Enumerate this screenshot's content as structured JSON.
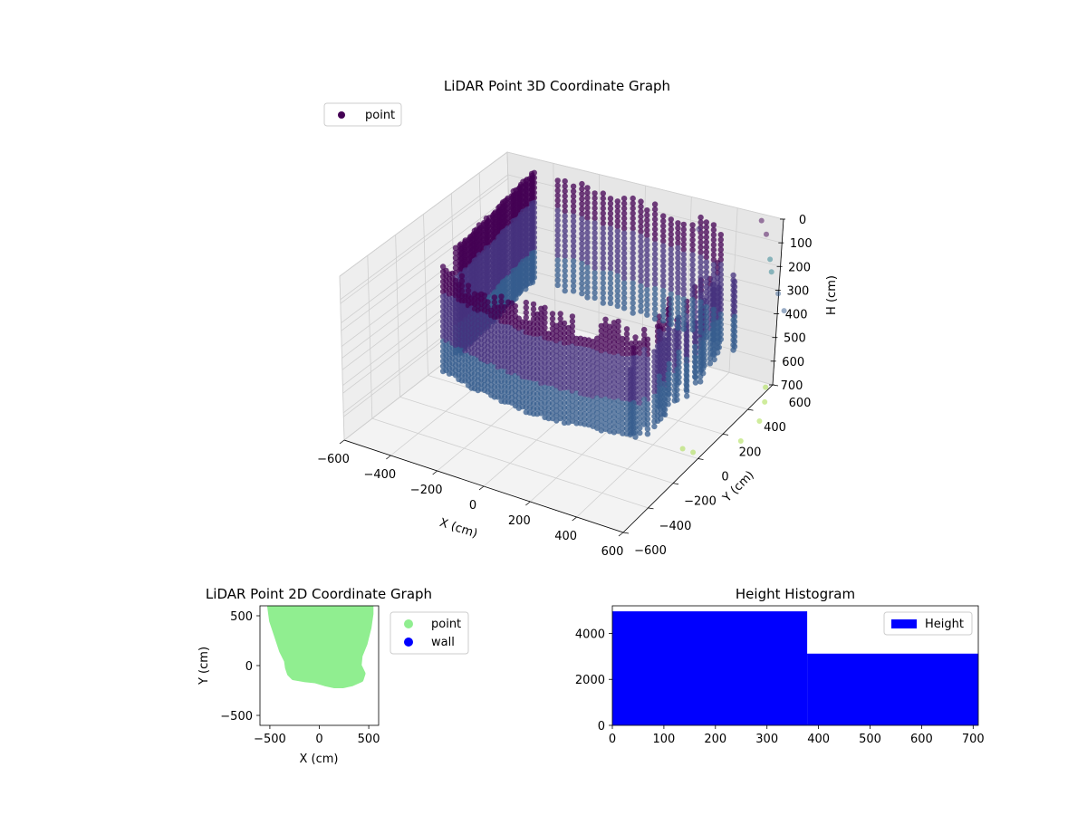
{
  "chart_data": [
    {
      "type": "scatter",
      "title": "LiDAR Point 3D Coordinate Graph",
      "xlabel": "X (cm)",
      "ylabel": "Y (cm)",
      "zlabel": "H (cm)",
      "xlim": [
        -600,
        600
      ],
      "ylim": [
        -600,
        600
      ],
      "zlim": [
        0,
        700
      ],
      "z_inverted": true,
      "x_ticks": [
        "−600",
        "−400",
        "−200",
        "0",
        "200",
        "400",
        "600"
      ],
      "y_ticks": [
        "−600",
        "−400",
        "−200",
        "0",
        "200",
        "400",
        "600"
      ],
      "z_ticks": [
        "0",
        "100",
        "200",
        "300",
        "400",
        "500",
        "600",
        "700"
      ],
      "legend": {
        "entries": [
          "point"
        ],
        "placement": "top-left"
      },
      "colormap": "viridis",
      "grid": true,
      "series": [
        {
          "name": "point",
          "description": "dense point cloud of vertical scan columns forming a curved wall structure",
          "x_range": [
            -420,
            470
          ],
          "y_range": [
            -280,
            560
          ],
          "h_range": [
            0,
            700
          ]
        }
      ]
    },
    {
      "type": "scatter",
      "title": "LiDAR Point 2D Coordinate Graph",
      "xlabel": "X (cm)",
      "ylabel": "Y (cm)",
      "xlim": [
        -600,
        600
      ],
      "ylim": [
        -600,
        600
      ],
      "x_ticks": [
        "−500",
        "0",
        "500"
      ],
      "y_ticks": [
        "−500",
        "0",
        "500"
      ],
      "legend": {
        "entries": [
          "point",
          "wall"
        ],
        "placement": "right-outside"
      },
      "series": [
        {
          "name": "point",
          "color": "#90ee90",
          "outline": [
            [
              -500,
              600
            ],
            [
              -480,
              450
            ],
            [
              -430,
              300
            ],
            [
              -380,
              150
            ],
            [
              -330,
              50
            ],
            [
              -320,
              -20
            ],
            [
              -300,
              -80
            ],
            [
              -260,
              -120
            ],
            [
              -140,
              -140
            ],
            [
              -40,
              -150
            ],
            [
              60,
              -180
            ],
            [
              150,
              -200
            ],
            [
              240,
              -200
            ],
            [
              330,
              -180
            ],
            [
              420,
              -140
            ],
            [
              440,
              -80
            ],
            [
              400,
              0
            ],
            [
              410,
              100
            ],
            [
              460,
              220
            ],
            [
              500,
              380
            ],
            [
              520,
              520
            ],
            [
              520,
              600
            ]
          ]
        },
        {
          "name": "wall",
          "color": "#0000ff",
          "points": []
        }
      ]
    },
    {
      "type": "bar",
      "title": "Height Histogram",
      "xlim": [
        0,
        710
      ],
      "ylim": [
        0,
        5200
      ],
      "x_ticks": [
        0,
        100,
        200,
        300,
        400,
        500,
        600,
        700
      ],
      "y_ticks": [
        0,
        2000,
        4000
      ],
      "legend": {
        "entries": [
          "Height"
        ],
        "placement": "top-right"
      },
      "series": [
        {
          "name": "Height",
          "color": "#0000ff",
          "bins": [
            {
              "from": 0,
              "to": 378,
              "count": 4960
            },
            {
              "from": 378,
              "to": 710,
              "count": 3120
            }
          ]
        }
      ]
    }
  ]
}
